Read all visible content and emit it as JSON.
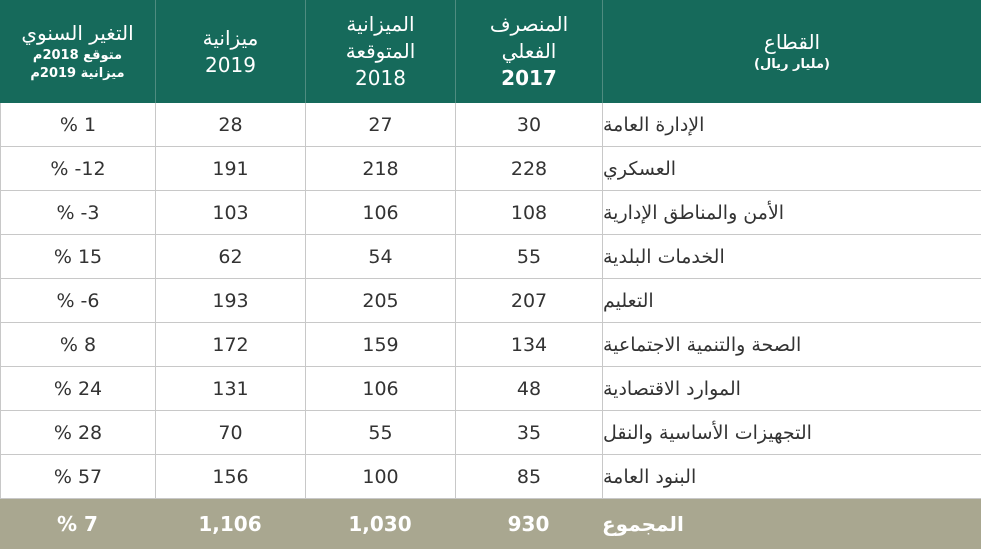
{
  "table": {
    "header": [
      {
        "lines": [
          "القطاع",
          "(مليار ريال)"
        ]
      },
      {
        "lines": [
          "المنصرف",
          "الفعلي",
          "2017"
        ]
      },
      {
        "lines": [
          "الميزانية",
          "المتوقعة",
          "2018"
        ]
      },
      {
        "lines": [
          "ميزانية",
          "2019"
        ]
      },
      {
        "lines": [
          "التغير السنوي",
          "متوقع 2018م",
          "ميزانية 2019م"
        ]
      }
    ],
    "rows": [
      [
        "الإدارة العامة",
        "30",
        "27",
        "28",
        "% 1"
      ],
      [
        "العسكري",
        "228",
        "218",
        "191",
        "% -12"
      ],
      [
        "الأمن والمناطق الإدارية",
        "108",
        "106",
        "103",
        "% -3"
      ],
      [
        "الخدمات البلدية",
        "55",
        "54",
        "62",
        "% 15"
      ],
      [
        "التعليم",
        "207",
        "205",
        "193",
        "% -6"
      ],
      [
        "الصحة والتنمية الاجتماعية",
        "134",
        "159",
        "172",
        "% 8"
      ],
      [
        "الموارد الاقتصادية",
        "48",
        "106",
        "131",
        "% 24"
      ],
      [
        "التجهيزات الأساسية والنقل",
        "35",
        "55",
        "70",
        "% 28"
      ],
      [
        "البنود العامة",
        "85",
        "100",
        "156",
        "% 57"
      ]
    ],
    "total": [
      "المجموع",
      "930",
      "1,030",
      "1,106",
      "% 7"
    ]
  }
}
